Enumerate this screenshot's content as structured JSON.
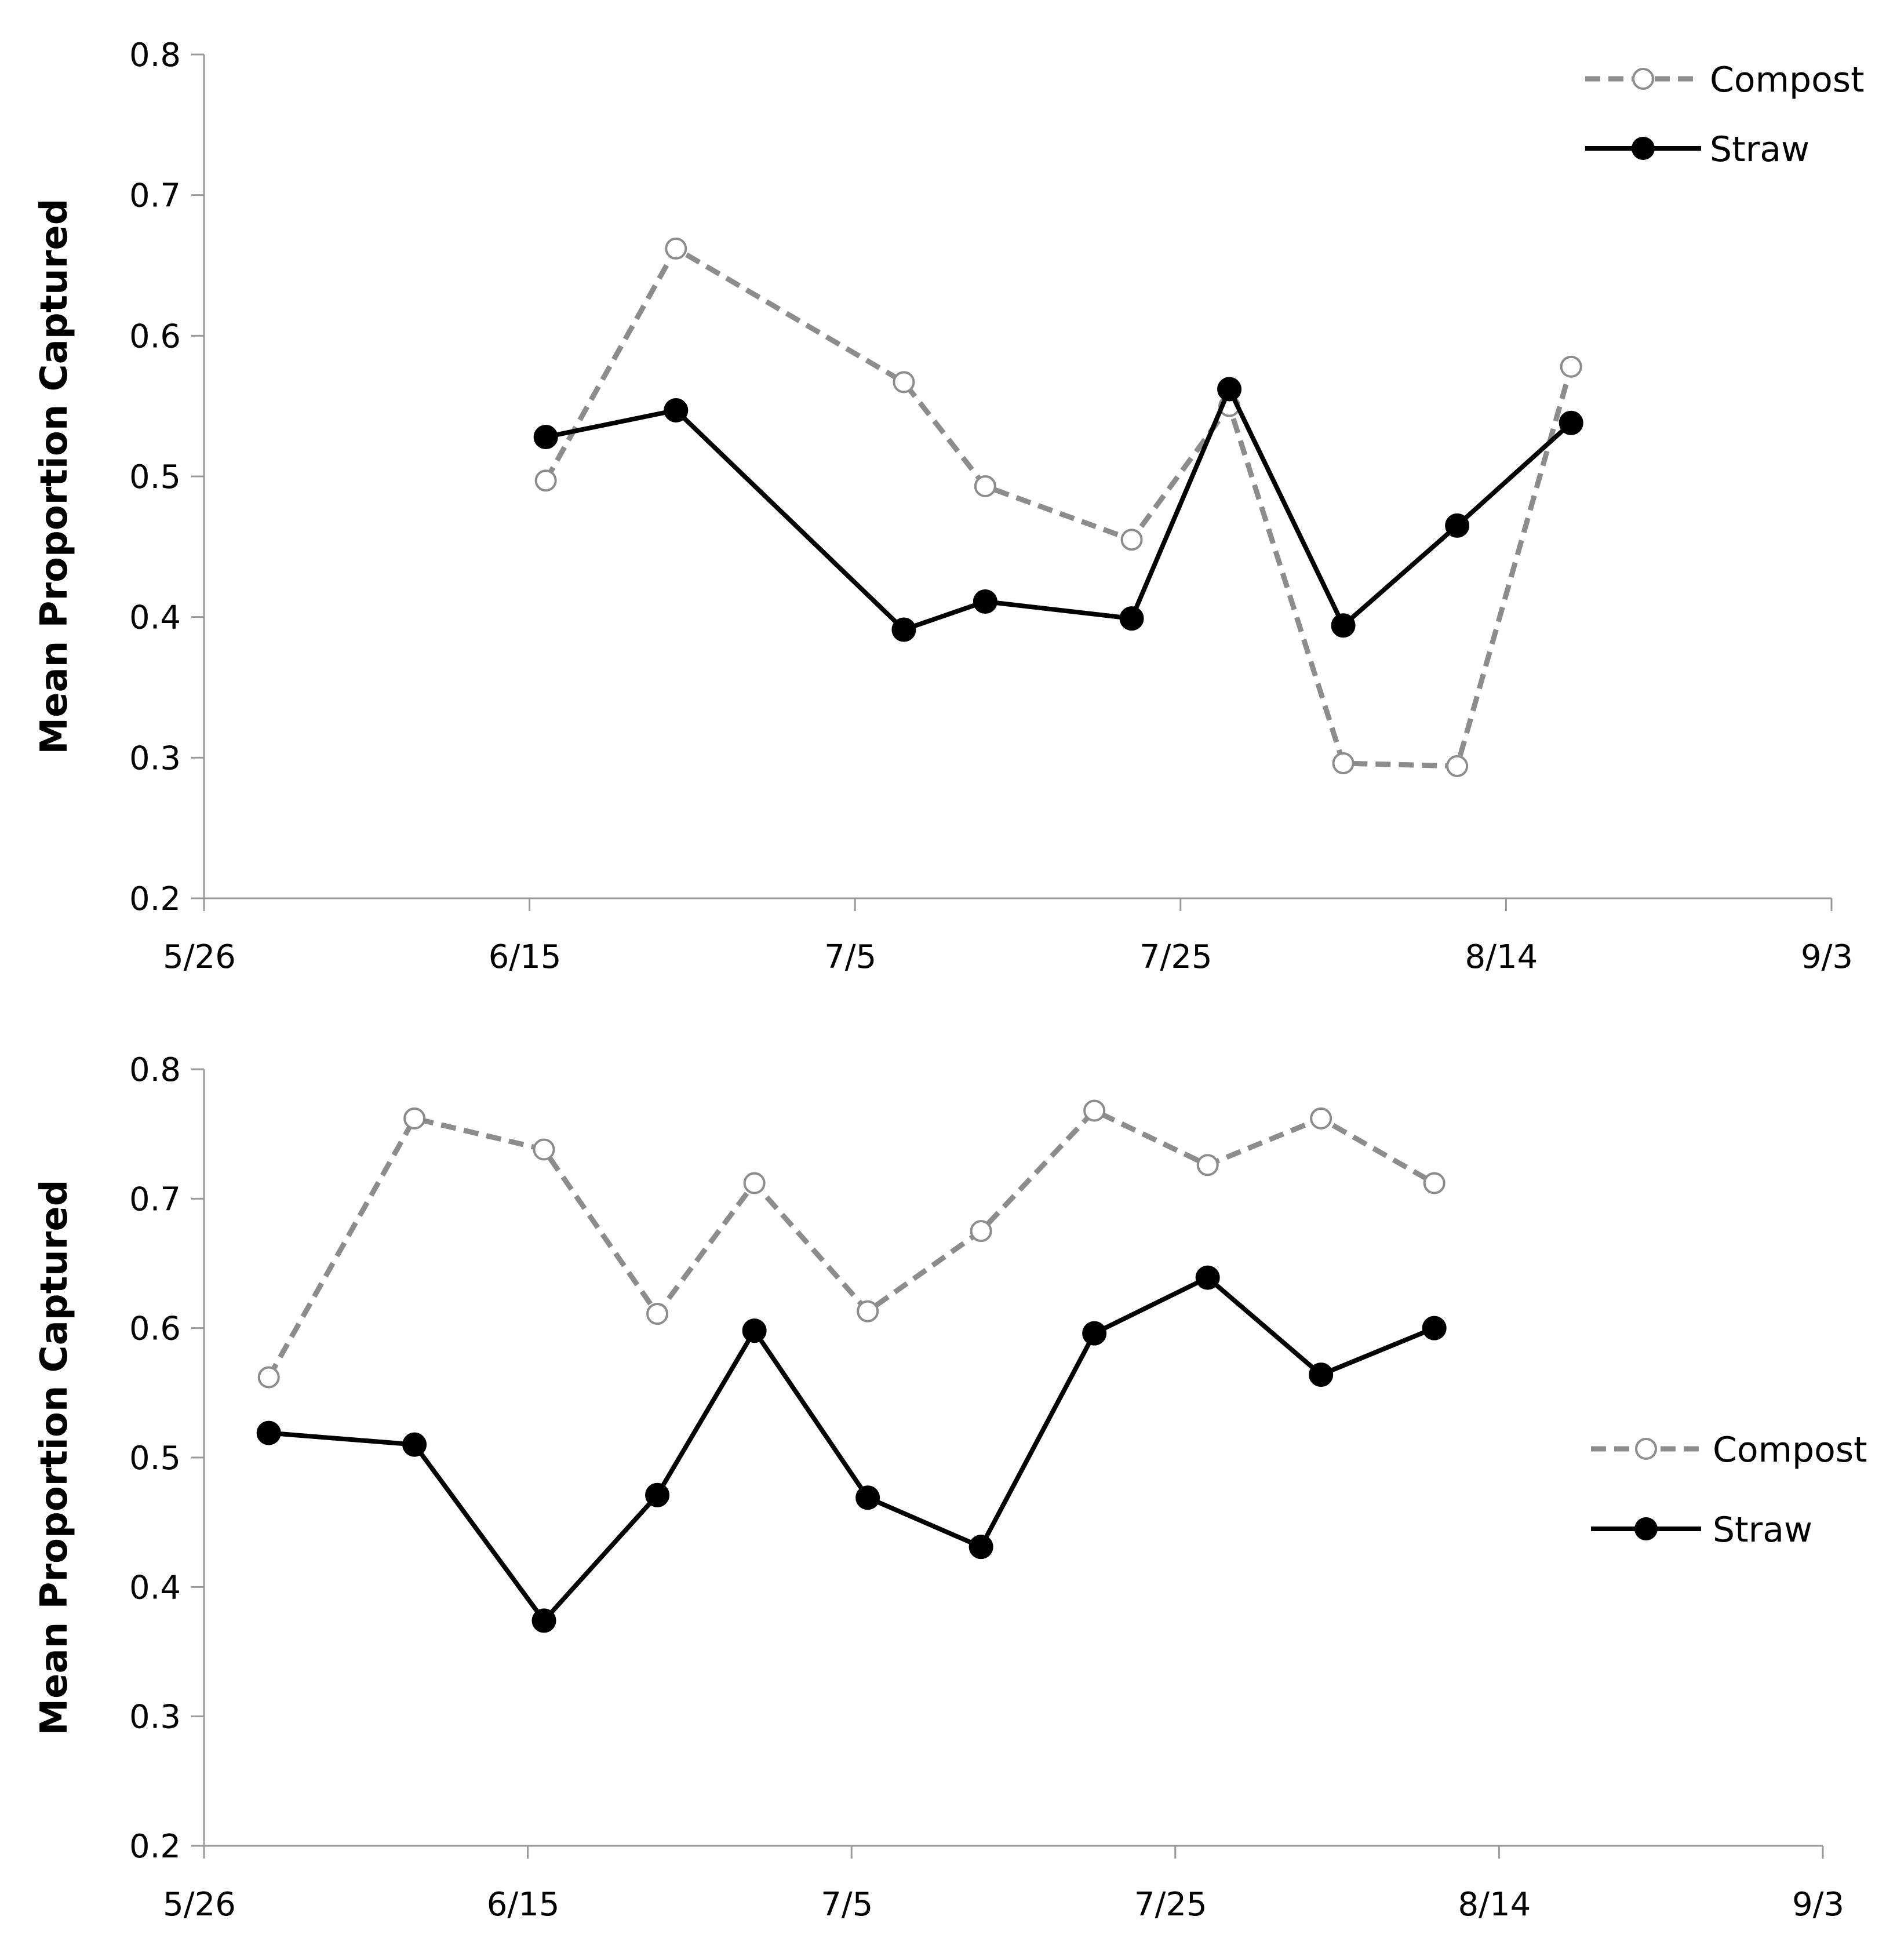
{
  "chart_data": [
    {
      "type": "line",
      "title": "",
      "xlabel": "",
      "ylabel": "Mean Proportion Captured",
      "x_ticks": [
        {
          "day": 0,
          "label": "5/26"
        },
        {
          "day": 20,
          "label": "6/15"
        },
        {
          "day": 40,
          "label": "7/5"
        },
        {
          "day": 60,
          "label": "7/25"
        },
        {
          "day": 80,
          "label": "8/14"
        },
        {
          "day": 100,
          "label": "9/3"
        }
      ],
      "xlim": [
        0,
        100
      ],
      "ylim": [
        0.2,
        0.8
      ],
      "y_ticks": [
        "0.2",
        "0.3",
        "0.4",
        "0.5",
        "0.6",
        "0.7",
        "0.8"
      ],
      "grid": false,
      "legend_position": "top-right",
      "series": [
        {
          "name": "Compost",
          "style": "dashed-open",
          "color": "#8c8c8c",
          "x": [
            21,
            29,
            43,
            48,
            57,
            63,
            70,
            77,
            84
          ],
          "y": [
            0.497,
            0.662,
            0.567,
            0.493,
            0.455,
            0.55,
            0.296,
            0.294,
            0.578
          ]
        },
        {
          "name": "Straw",
          "style": "solid-filled",
          "color": "#000000",
          "x": [
            21,
            29,
            43,
            48,
            57,
            63,
            70,
            77,
            84
          ],
          "y": [
            0.528,
            0.547,
            0.391,
            0.411,
            0.399,
            0.562,
            0.394,
            0.465,
            0.538
          ]
        }
      ]
    },
    {
      "type": "line",
      "title": "",
      "xlabel": "",
      "ylabel": "Mean Proportion Captured",
      "x_ticks": [
        {
          "day": 0,
          "label": "5/26"
        },
        {
          "day": 20,
          "label": "6/15"
        },
        {
          "day": 40,
          "label": "7/5"
        },
        {
          "day": 60,
          "label": "7/25"
        },
        {
          "day": 80,
          "label": "8/14"
        },
        {
          "day": 100,
          "label": "9/3"
        }
      ],
      "xlim": [
        0,
        100
      ],
      "ylim": [
        0.2,
        0.8
      ],
      "y_ticks": [
        "0.2",
        "0.3",
        "0.4",
        "0.5",
        "0.6",
        "0.7",
        "0.8"
      ],
      "grid": false,
      "legend_position": "right",
      "series": [
        {
          "name": "Compost",
          "style": "dashed-open",
          "color": "#8c8c8c",
          "x": [
            4,
            13,
            21,
            28,
            34,
            41,
            48,
            55,
            62,
            69,
            76
          ],
          "y": [
            0.562,
            0.762,
            0.738,
            0.611,
            0.712,
            0.613,
            0.675,
            0.768,
            0.726,
            0.762,
            0.712
          ]
        },
        {
          "name": "Straw",
          "style": "solid-filled",
          "color": "#000000",
          "x": [
            4,
            13,
            21,
            28,
            34,
            41,
            48,
            55,
            62,
            69,
            76
          ],
          "y": [
            0.519,
            0.51,
            0.374,
            0.471,
            0.598,
            0.469,
            0.431,
            0.596,
            0.639,
            0.564,
            0.6
          ]
        }
      ]
    }
  ]
}
